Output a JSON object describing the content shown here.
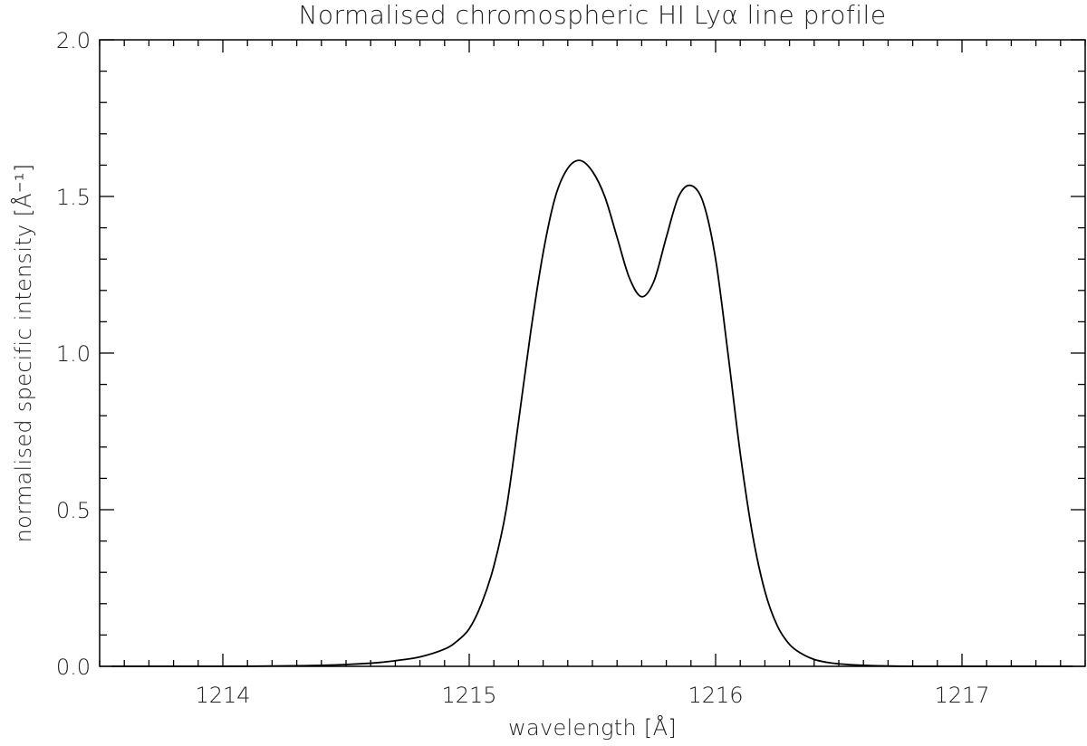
{
  "chart_data": {
    "type": "line",
    "title": "Normalised chromospheric HI Lyα line profile",
    "xlabel": "wavelength [Å]",
    "ylabel": "normalised specific intensity [Å⁻¹]",
    "xlim": [
      1213.5,
      1217.5
    ],
    "ylim": [
      0.0,
      2.0
    ],
    "x_ticks": [
      1214,
      1215,
      1216,
      1217
    ],
    "x_tick_labels": [
      "1214",
      "1215",
      "1216",
      "1217"
    ],
    "y_ticks": [
      0.0,
      0.5,
      1.0,
      1.5,
      2.0
    ],
    "y_tick_labels": [
      "0.0",
      "0.5",
      "1.0",
      "1.5",
      "2.0"
    ],
    "grid": false,
    "series": [
      {
        "x": [
          1213.55,
          1213.8,
          1214.0,
          1214.2,
          1214.4,
          1214.6,
          1214.7,
          1214.8,
          1214.9,
          1214.95,
          1215.0,
          1215.05,
          1215.1,
          1215.15,
          1215.2,
          1215.25,
          1215.3,
          1215.35,
          1215.4,
          1215.45,
          1215.5,
          1215.55,
          1215.6,
          1215.65,
          1215.7,
          1215.75,
          1215.8,
          1215.85,
          1215.9,
          1215.95,
          1216.0,
          1216.05,
          1216.1,
          1216.15,
          1216.2,
          1216.25,
          1216.3,
          1216.35,
          1216.4,
          1216.45,
          1216.5,
          1216.6,
          1216.7,
          1216.8,
          1217.0,
          1217.2,
          1217.45
        ],
        "y": [
          0.0,
          0.0,
          0.0,
          0.001,
          0.003,
          0.01,
          0.018,
          0.03,
          0.055,
          0.08,
          0.12,
          0.2,
          0.32,
          0.5,
          0.78,
          1.07,
          1.32,
          1.5,
          1.59,
          1.615,
          1.58,
          1.5,
          1.37,
          1.24,
          1.18,
          1.23,
          1.37,
          1.5,
          1.535,
          1.48,
          1.3,
          1.0,
          0.68,
          0.42,
          0.24,
          0.13,
          0.07,
          0.04,
          0.022,
          0.013,
          0.008,
          0.003,
          0.001,
          0.0,
          0.0,
          0.0,
          0.0
        ]
      }
    ]
  }
}
